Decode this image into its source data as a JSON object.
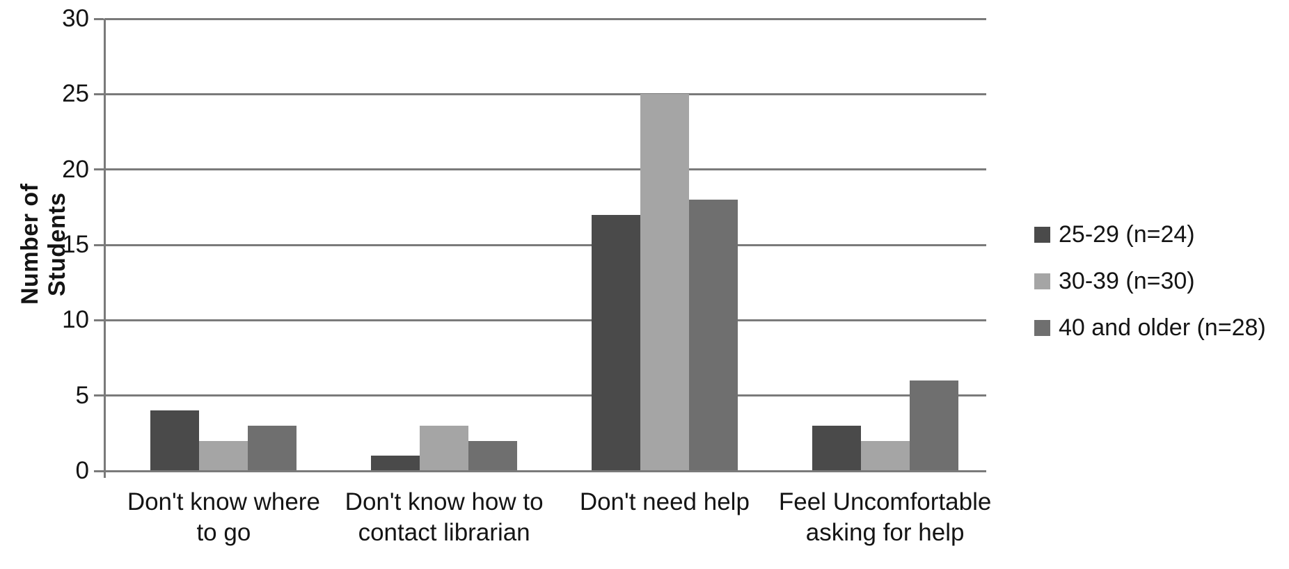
{
  "chart_data": {
    "type": "bar",
    "title": "",
    "ylabel": "Number of Students",
    "xlabel": "",
    "ylim": [
      0,
      30
    ],
    "yticks": [
      0,
      5,
      10,
      15,
      20,
      25,
      30
    ],
    "grid": true,
    "legend_position": "right-middle",
    "categories": [
      "Don't know where to go",
      "Don't know how to contact librarian",
      "Don't need help",
      "Feel Uncomfortable asking for help"
    ],
    "xtick_lines": [
      [
        "Don't know where",
        "to go"
      ],
      [
        "Don't know how to",
        "contact librarian"
      ],
      [
        "Don't need help"
      ],
      [
        "Feel Uncomfortable",
        "asking for help"
      ]
    ],
    "series": [
      {
        "name": "25-29 (n=24)",
        "color": "#4a4a4a",
        "values": [
          4,
          1,
          17,
          3
        ]
      },
      {
        "name": "30-39 (n=30)",
        "color": "#a5a5a5",
        "values": [
          2,
          3,
          25,
          2
        ]
      },
      {
        "name": "40 and older (n=28)",
        "color": "#6f6f6f",
        "values": [
          3,
          2,
          18,
          6
        ]
      }
    ]
  },
  "colors": {
    "axis": "#7a7a7a",
    "text": "#141414",
    "background": "#ffffff"
  }
}
